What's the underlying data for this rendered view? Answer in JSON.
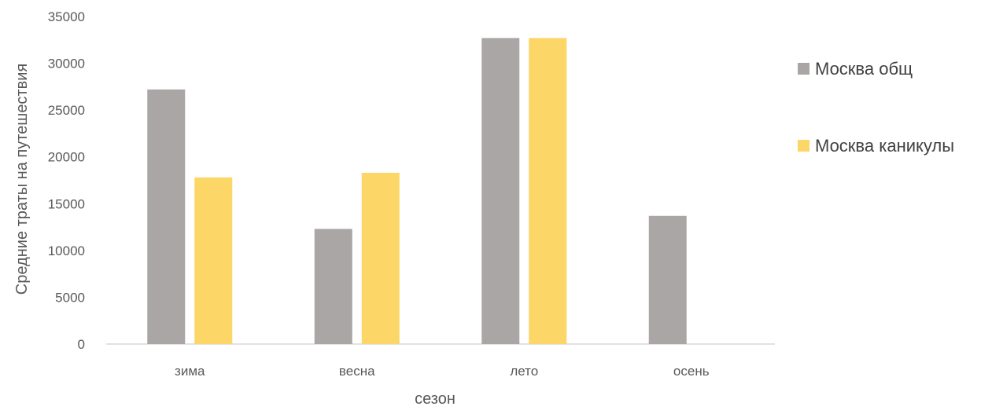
{
  "chart_data": {
    "type": "bar",
    "title": "",
    "xlabel": "сезон",
    "ylabel": "Средние траты на путешествия",
    "categories": [
      "зима",
      "весна",
      "лето",
      "осень"
    ],
    "series": [
      {
        "name": "Москва общ",
        "color": "#a9a6a5",
        "values": [
          27200,
          12300,
          32700,
          13700
        ]
      },
      {
        "name": "Москва каникулы",
        "color": "#fcd666",
        "values": [
          17800,
          18300,
          32700,
          null
        ]
      }
    ],
    "ylim": [
      0,
      35000
    ],
    "yticks": [
      0,
      5000,
      10000,
      15000,
      20000,
      25000,
      30000,
      35000
    ],
    "ytick_labels": [
      "0",
      "5000",
      "10000",
      "15000",
      "20000",
      "25000",
      "30000",
      "35000"
    ],
    "grid": false,
    "legend_position": "right",
    "axis_color": "#d9d9d9"
  }
}
